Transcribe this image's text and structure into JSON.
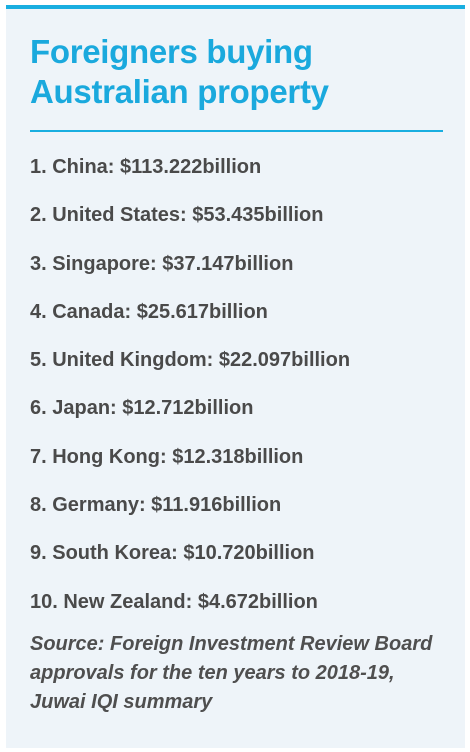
{
  "title": "Foreigners buying Australian property",
  "items": [
    "1. China: $113.222billion",
    "2. United States: $53.435billion",
    "3. Singapore: $37.147billion",
    "4. Canada: $25.617billion",
    "5. United Kingdom: $22.097billion",
    "6. Japan: $12.712billion",
    "7. Hong Kong: $12.318billion",
    "8. Germany: $11.916billion",
    "9. South Korea: $10.720billion",
    "10. New Zealand: $4.672billion"
  ],
  "source": "Source: Foreign Investment Review Board approvals for the ten years to 2018-19, Juwai IQI summary",
  "colors": {
    "accent": "#19aee0",
    "panel_background": "#eef4f9",
    "text": "#4a4a4a"
  }
}
